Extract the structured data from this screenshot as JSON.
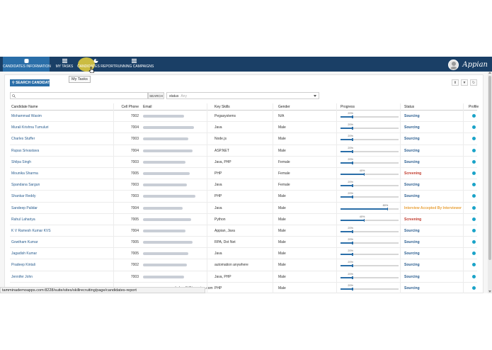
{
  "nav": {
    "tabs": [
      {
        "label": "CANDIDATES INFORMATION",
        "icon": "database-icon"
      },
      {
        "label": "MY TASKS",
        "icon": "list-icon"
      },
      {
        "label": "CANDIDATES REPORT",
        "icon": "pie-chart-icon"
      },
      {
        "label": "RUNNING CAMPAIGNS",
        "icon": "list-icon"
      }
    ],
    "active_tab": "CANDIDATES INFORMATION",
    "brand": "Appian",
    "tooltip": "My Tasks"
  },
  "toolbar": {
    "search_candidates_label": "SEARCH CANDIDATES",
    "search_button_label": "SEARCH",
    "search_placeholder": "",
    "status_label": "status",
    "status_value": "Any",
    "tools": [
      "export-icon",
      "filter-icon",
      "refresh-icon"
    ]
  },
  "table": {
    "headers": [
      "Candidate Name",
      "Cell Phone",
      "Email",
      "Key Skills",
      "Gender",
      "Progress",
      "Status",
      "Profile"
    ],
    "rows": [
      {
        "name": "Mohammad Wasim",
        "phone": "7002",
        "skills": "Pegasystems",
        "gender": "N/A",
        "progress": 20,
        "status": "Sourcing",
        "status_type": "sourcing"
      },
      {
        "name": "Murali Krishna Tumuluri",
        "phone": "7004",
        "skills": "Java",
        "gender": "Male",
        "progress": 20,
        "status": "Sourcing",
        "status_type": "sourcing"
      },
      {
        "name": "Charles Stuffer",
        "phone": "7003",
        "skills": "Node.js",
        "gender": "Male",
        "progress": 20,
        "status": "Sourcing",
        "status_type": "sourcing"
      },
      {
        "name": "Rupas Srivastava",
        "phone": "7004",
        "skills": "ASP.NET",
        "gender": "Male",
        "progress": 20,
        "status": "Sourcing",
        "status_type": "sourcing"
      },
      {
        "name": "Shilpa Singh",
        "phone": "7003",
        "skills": "Java, PHP",
        "gender": "Female",
        "progress": 20,
        "status": "Sourcing",
        "status_type": "sourcing"
      },
      {
        "name": "Mounika Sharma",
        "phone": "7005",
        "skills": "PHP",
        "gender": "Female",
        "progress": 40,
        "status": "Screening",
        "status_type": "screening"
      },
      {
        "name": "Spandana Sargun",
        "phone": "7003",
        "skills": "Java",
        "gender": "Female",
        "progress": 20,
        "status": "Sourcing",
        "status_type": "sourcing"
      },
      {
        "name": "Shankar Reddy",
        "phone": "7003",
        "skills": "PHP",
        "gender": "Male",
        "progress": 20,
        "status": "Sourcing",
        "status_type": "sourcing"
      },
      {
        "name": "Sandeep Palidar",
        "phone": "7004",
        "skills": "Java",
        "gender": "Male",
        "progress": 80,
        "status": "Interview Accepted By Interviewer",
        "status_type": "interview"
      },
      {
        "name": "Rahul Lahariya",
        "phone": "7005",
        "skills": "Python",
        "gender": "Male",
        "progress": 40,
        "status": "Screening",
        "status_type": "screening"
      },
      {
        "name": "K V Ramesh Kumar KVS",
        "phone": "7004",
        "skills": "Appian, Java",
        "gender": "Male",
        "progress": 20,
        "status": "Sourcing",
        "status_type": "sourcing"
      },
      {
        "name": "Gowtham Kumar",
        "phone": "7005",
        "skills": "RPA, Dot Net",
        "gender": "Male",
        "progress": 20,
        "status": "Sourcing",
        "status_type": "sourcing"
      },
      {
        "name": "Jagadish Kumar",
        "phone": "7005",
        "skills": "Java",
        "gender": "Male",
        "progress": 20,
        "status": "Sourcing",
        "status_type": "sourcing"
      },
      {
        "name": "Pradeep Kintali",
        "phone": "7002",
        "skills": "automation anywhere",
        "gender": "Male",
        "progress": 20,
        "status": "Sourcing",
        "status_type": "sourcing"
      },
      {
        "name": "Jennifer John",
        "phone": "7003",
        "skills": "Java, PHP",
        "gender": "Male",
        "progress": 20,
        "status": "Sourcing",
        "status_type": "sourcing"
      },
      {
        "name": "",
        "phone": "",
        "skills": "PHP",
        "gender": "Male",
        "progress": 20,
        "status": "Sourcing",
        "status_type": "sourcing"
      }
    ]
  },
  "statusbar": {
    "url": "tamminademoapps.com:8228/suite/sites/skillrecruiting/page/candidates-report",
    "peek_email": "ankalapalli@tammina.com"
  },
  "colors": {
    "nav_bg": "#1a3f66",
    "accent": "#2a6ea8",
    "sourcing": "#2a5d8f",
    "screening": "#c0392b",
    "interview": "#e8a13a",
    "info": "#1aa3c8"
  }
}
